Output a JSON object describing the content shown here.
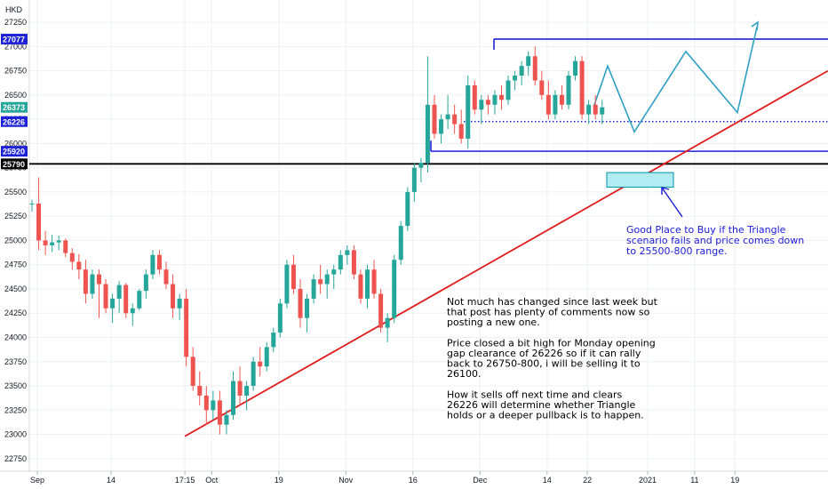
{
  "currency": "HKD",
  "chart_data": {
    "type": "candlestick",
    "price_axis": {
      "ticks": [
        22750,
        23000,
        23250,
        23500,
        23750,
        24000,
        24250,
        24500,
        24750,
        25000,
        25250,
        25500,
        25750,
        26000,
        26250,
        26500,
        26750,
        27000,
        27250
      ],
      "range": [
        22620,
        27480
      ],
      "badges": [
        {
          "label": "27077",
          "value": 27077,
          "color": "#1e22d6"
        },
        {
          "label": "26373",
          "value": 26373,
          "color": "#26a69a"
        },
        {
          "label": "26226",
          "value": 26226,
          "color": "#1e22d6"
        },
        {
          "label": "25920",
          "value": 25920,
          "color": "#1e22d6"
        },
        {
          "label": "25790",
          "value": 25790,
          "color": "#000000"
        }
      ]
    },
    "time_axis": {
      "labels": [
        "Sep",
        "14",
        "17:15",
        "Oct",
        "19",
        "Nov",
        "16",
        "Dec",
        "14",
        "22",
        "2021",
        "11",
        "19"
      ],
      "first_bar_index": 0,
      "label_bar_index": [
        0,
        11,
        22,
        26,
        36,
        46,
        56,
        66,
        76,
        82,
        91,
        98,
        104
      ]
    },
    "candles": [
      [
        25380,
        25420,
        25300,
        25380
      ],
      [
        25380,
        25650,
        24900,
        25000
      ],
      [
        25000,
        25100,
        24850,
        24950
      ],
      [
        24950,
        25060,
        24880,
        24980
      ],
      [
        24980,
        25050,
        24900,
        25000
      ],
      [
        25000,
        25020,
        24830,
        24870
      ],
      [
        24870,
        24920,
        24700,
        24780
      ],
      [
        24780,
        24860,
        24600,
        24700
      ],
      [
        24700,
        24800,
        24350,
        24450
      ],
      [
        24450,
        24700,
        24400,
        24650
      ],
      [
        24650,
        24700,
        24200,
        24550
      ],
      [
        24550,
        24600,
        24250,
        24300
      ],
      [
        24300,
        24450,
        24150,
        24400
      ],
      [
        24400,
        24580,
        24250,
        24540
      ],
      [
        24540,
        24560,
        24200,
        24250
      ],
      [
        24250,
        24350,
        24120,
        24300
      ],
      [
        24300,
        24500,
        24280,
        24480
      ],
      [
        24480,
        24700,
        24400,
        24650
      ],
      [
        24650,
        24900,
        24600,
        24850
      ],
      [
        24850,
        24900,
        24650,
        24700
      ],
      [
        24700,
        24780,
        24500,
        24550
      ],
      [
        24550,
        24650,
        24200,
        24300
      ],
      [
        24300,
        24450,
        24180,
        24400
      ],
      [
        24400,
        24500,
        23700,
        23800
      ],
      [
        23800,
        23900,
        23450,
        23500
      ],
      [
        23500,
        23650,
        23300,
        23400
      ],
      [
        23400,
        23500,
        23100,
        23250
      ],
      [
        23250,
        23450,
        23150,
        23350
      ],
      [
        23350,
        23450,
        23000,
        23100
      ],
      [
        23100,
        23250,
        23000,
        23200
      ],
      [
        23200,
        23650,
        23150,
        23550
      ],
      [
        23550,
        23700,
        23300,
        23400
      ],
      [
        23400,
        23550,
        23250,
        23500
      ],
      [
        23500,
        23800,
        23450,
        23750
      ],
      [
        23750,
        23900,
        23600,
        23700
      ],
      [
        23700,
        23950,
        23650,
        23900
      ],
      [
        23900,
        24100,
        23850,
        24050
      ],
      [
        24050,
        24400,
        24000,
        24350
      ],
      [
        24350,
        24800,
        24300,
        24750
      ],
      [
        24750,
        24850,
        24450,
        24500
      ],
      [
        24500,
        24600,
        24100,
        24200
      ],
      [
        24200,
        24450,
        24050,
        24400
      ],
      [
        24400,
        24650,
        24350,
        24600
      ],
      [
        24600,
        24750,
        24450,
        24550
      ],
      [
        24550,
        24700,
        24400,
        24650
      ],
      [
        24650,
        24750,
        24500,
        24700
      ],
      [
        24700,
        24900,
        24650,
        24850
      ],
      [
        24850,
        24950,
        24750,
        24900
      ],
      [
        24900,
        24950,
        24600,
        24650
      ],
      [
        24650,
        24700,
        24350,
        24400
      ],
      [
        24400,
        24750,
        24300,
        24700
      ],
      [
        24700,
        24800,
        24400,
        24450
      ],
      [
        24450,
        24500,
        24050,
        24100
      ],
      [
        24100,
        24250,
        23950,
        24200
      ],
      [
        24200,
        24850,
        24150,
        24800
      ],
      [
        24800,
        25200,
        24750,
        25150
      ],
      [
        25150,
        25550,
        25100,
        25500
      ],
      [
        25500,
        25800,
        25400,
        25750
      ],
      [
        25750,
        25850,
        25600,
        25800
      ],
      [
        25800,
        26900,
        25700,
        26400
      ],
      [
        26400,
        26500,
        26050,
        26100
      ],
      [
        26100,
        26300,
        26000,
        26250
      ],
      [
        26250,
        26500,
        26150,
        26300
      ],
      [
        26300,
        26400,
        26100,
        26200
      ],
      [
        26200,
        26350,
        26000,
        26050
      ],
      [
        26050,
        26700,
        25950,
        26600
      ],
      [
        26600,
        26650,
        26300,
        26350
      ],
      [
        26350,
        26500,
        26200,
        26450
      ],
      [
        26450,
        26500,
        26300,
        26400
      ],
      [
        26400,
        26550,
        26300,
        26500
      ],
      [
        26500,
        26600,
        26350,
        26450
      ],
      [
        26450,
        26700,
        26400,
        26650
      ],
      [
        26650,
        26750,
        26550,
        26700
      ],
      [
        26700,
        26850,
        26600,
        26800
      ],
      [
        26800,
        26950,
        26700,
        26900
      ],
      [
        26900,
        27000,
        26600,
        26650
      ],
      [
        26650,
        26750,
        26450,
        26500
      ],
      [
        26500,
        26650,
        26250,
        26300
      ],
      [
        26300,
        26550,
        26250,
        26500
      ],
      [
        26500,
        26600,
        26350,
        26400
      ],
      [
        26400,
        26750,
        26350,
        26700
      ],
      [
        26700,
        26900,
        26650,
        26850
      ],
      [
        26850,
        26900,
        26250,
        26300
      ],
      [
        26300,
        26450,
        26200,
        26400
      ],
      [
        26400,
        26500,
        26250,
        26300
      ],
      [
        26300,
        26450,
        26200,
        26373
      ]
    ],
    "lines": [
      {
        "name": "resistance",
        "value": 27077,
        "color": "#1e22d6"
      },
      {
        "name": "gap-level",
        "value": 26226,
        "color": "#1e22d6",
        "style": "dotted"
      },
      {
        "name": "triangle-support",
        "value": 25920,
        "color": "#1e22d6"
      },
      {
        "name": "horizontal-support",
        "value": 25790,
        "color": "#000000"
      },
      {
        "name": "uptrend",
        "color": "#e01b1b",
        "from_price": 22980,
        "to_price": 26750
      }
    ],
    "projection_path": [
      26373,
      26800,
      26120,
      26950,
      26320,
      27200
    ],
    "buy_zone": [
      25550,
      25700
    ]
  },
  "annotations": {
    "main_note": [
      "Not much has changed since last week but",
      "that post has plenty of comments now so",
      "posting a new one.",
      "",
      "Price closed a bit high for Monday opening",
      "gap clearance of 26226 so if it can rally",
      "back to 26750-800, i will be selling it to",
      "26100.",
      "",
      "How it sells off next time and clears",
      "26226 will determine whether Triangle",
      "holds or a deeper pullback is to happen."
    ],
    "buy_note": [
      "Good Place to Buy if the Triangle",
      "scenario fails and price comes down",
      "to 25500-800 range."
    ]
  },
  "colors": {
    "up": "#26a69a",
    "down": "#ef5350",
    "grid": "#eef0f4"
  }
}
